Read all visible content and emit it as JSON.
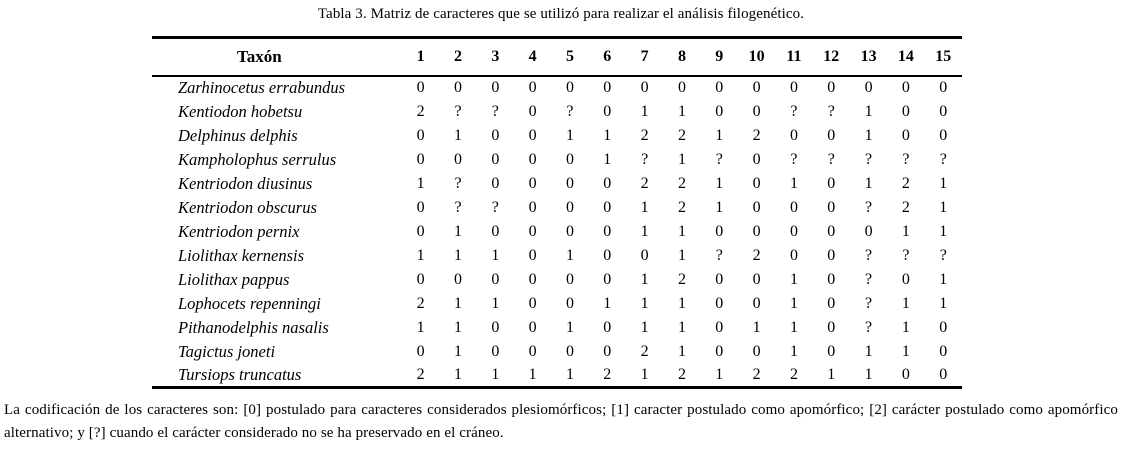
{
  "title": "Tabla 3. Matriz de caracteres que se utilizó para realizar el análisis filogenético.",
  "table": {
    "header": {
      "taxon_label": "Taxón",
      "character_numbers": [
        "1",
        "2",
        "3",
        "4",
        "5",
        "6",
        "7",
        "8",
        "9",
        "10",
        "11",
        "12",
        "13",
        "14",
        "15"
      ]
    },
    "rows": [
      {
        "taxon": "Zarhinocetus errabundus",
        "values": [
          "0",
          "0",
          "0",
          "0",
          "0",
          "0",
          "0",
          "0",
          "0",
          "0",
          "0",
          "0",
          "0",
          "0",
          "0"
        ]
      },
      {
        "taxon": "Kentiodon hobetsu",
        "values": [
          "2",
          "?",
          "?",
          "0",
          "?",
          "0",
          "1",
          "1",
          "0",
          "0",
          "?",
          "?",
          "1",
          "0",
          "0"
        ]
      },
      {
        "taxon": "Delphinus delphis",
        "values": [
          "0",
          "1",
          "0",
          "0",
          "1",
          "1",
          "2",
          "2",
          "1",
          "2",
          "0",
          "0",
          "1",
          "0",
          "0"
        ]
      },
      {
        "taxon": "Kampholophus serrulus",
        "values": [
          "0",
          "0",
          "0",
          "0",
          "0",
          "1",
          "?",
          "1",
          "?",
          "0",
          "?",
          "?",
          "?",
          "?",
          "?"
        ]
      },
      {
        "taxon": "Kentriodon diusinus",
        "values": [
          "1",
          "?",
          "0",
          "0",
          "0",
          "0",
          "2",
          "2",
          "1",
          "0",
          "1",
          "0",
          "1",
          "2",
          "1"
        ]
      },
      {
        "taxon": "Kentriodon obscurus",
        "values": [
          "0",
          "?",
          "?",
          "0",
          "0",
          "0",
          "1",
          "2",
          "1",
          "0",
          "0",
          "0",
          "?",
          "2",
          "1"
        ]
      },
      {
        "taxon": "Kentriodon pernix",
        "values": [
          "0",
          "1",
          "0",
          "0",
          "0",
          "0",
          "1",
          "1",
          "0",
          "0",
          "0",
          "0",
          "0",
          "1",
          "1"
        ]
      },
      {
        "taxon": "Liolithax kernensis",
        "values": [
          "1",
          "1",
          "1",
          "0",
          "1",
          "0",
          "0",
          "1",
          "?",
          "2",
          "0",
          "0",
          "?",
          "?",
          "?"
        ]
      },
      {
        "taxon": "Liolithax pappus",
        "values": [
          "0",
          "0",
          "0",
          "0",
          "0",
          "0",
          "1",
          "2",
          "0",
          "0",
          "1",
          "0",
          "?",
          "0",
          "1"
        ]
      },
      {
        "taxon": "Lophocets repenningi",
        "values": [
          "2",
          "1",
          "1",
          "0",
          "0",
          "1",
          "1",
          "1",
          "0",
          "0",
          "1",
          "0",
          "?",
          "1",
          "1"
        ]
      },
      {
        "taxon": "Pithanodelphis nasalis",
        "values": [
          "1",
          "1",
          "0",
          "0",
          "1",
          "0",
          "1",
          "1",
          "0",
          "1",
          "1",
          "0",
          "?",
          "1",
          "0"
        ]
      },
      {
        "taxon": "Tagictus joneti",
        "values": [
          "0",
          "1",
          "0",
          "0",
          "0",
          "0",
          "2",
          "1",
          "0",
          "0",
          "1",
          "0",
          "1",
          "1",
          "0"
        ]
      },
      {
        "taxon": "Tursiops truncatus",
        "values": [
          "2",
          "1",
          "1",
          "1",
          "1",
          "2",
          "1",
          "2",
          "1",
          "2",
          "2",
          "1",
          "1",
          "0",
          "0"
        ]
      }
    ]
  },
  "footnote": "La codificación de los caracteres son: [0] postulado para caracteres considerados plesiomórficos; [1] caracter postulado como apomórfico; [2] carácter postulado como apomórfico alternativo; y [?] cuando el carácter considerado no se ha preservado en el cráneo."
}
